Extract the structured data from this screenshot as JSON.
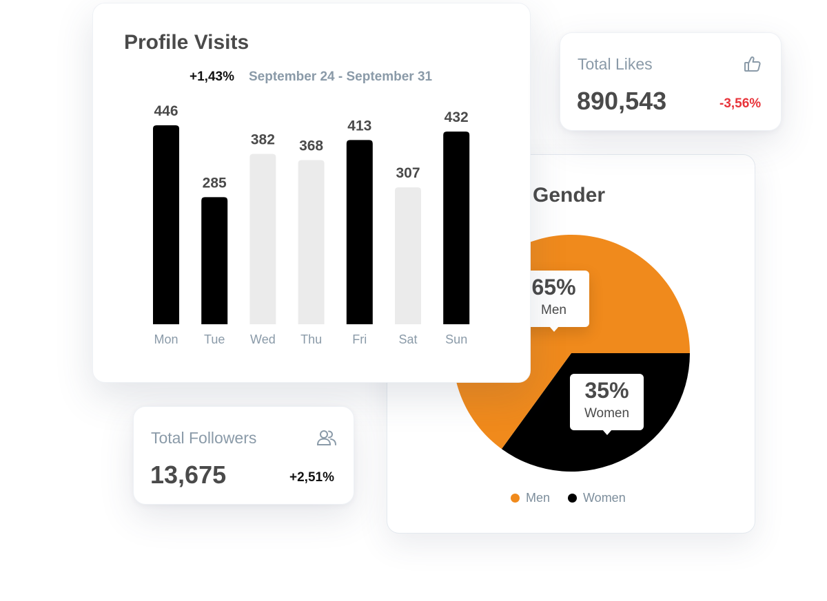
{
  "colors": {
    "bar_dark": "#000000",
    "bar_light": "#ebebeb",
    "men": "#f08a1c",
    "women": "#000000",
    "negative": "#e8333a",
    "muted": "#8a9aa8"
  },
  "profile_visits": {
    "title": "Profile Visits",
    "change": "+1,43%",
    "range": "September 24 - September 31"
  },
  "total_likes": {
    "label": "Total Likes",
    "value": "890,543",
    "change": "-3,56%",
    "icon": "thumbs-up-icon"
  },
  "total_followers": {
    "label": "Total Followers",
    "value": "13,675",
    "change": "+2,51%",
    "icon": "users-icon"
  },
  "gender": {
    "title": "Gender",
    "tooltips": [
      {
        "pct": "65%",
        "label": "Men"
      },
      {
        "pct": "35%",
        "label": "Women"
      }
    ],
    "legend": [
      "Men",
      "Women"
    ]
  },
  "chart_data": [
    {
      "type": "bar",
      "title": "Profile Visits",
      "categories": [
        "Mon",
        "Tue",
        "Wed",
        "Thu",
        "Fri",
        "Sat",
        "Sun"
      ],
      "values": [
        446,
        285,
        382,
        368,
        413,
        307,
        432
      ],
      "highlighted": [
        true,
        true,
        false,
        false,
        true,
        false,
        true
      ],
      "ylim": [
        0,
        446
      ]
    },
    {
      "type": "pie",
      "title": "Gender",
      "labels": [
        "Men",
        "Women"
      ],
      "values": [
        65,
        35
      ],
      "colors": [
        "#f08a1c",
        "#000000"
      ]
    }
  ]
}
